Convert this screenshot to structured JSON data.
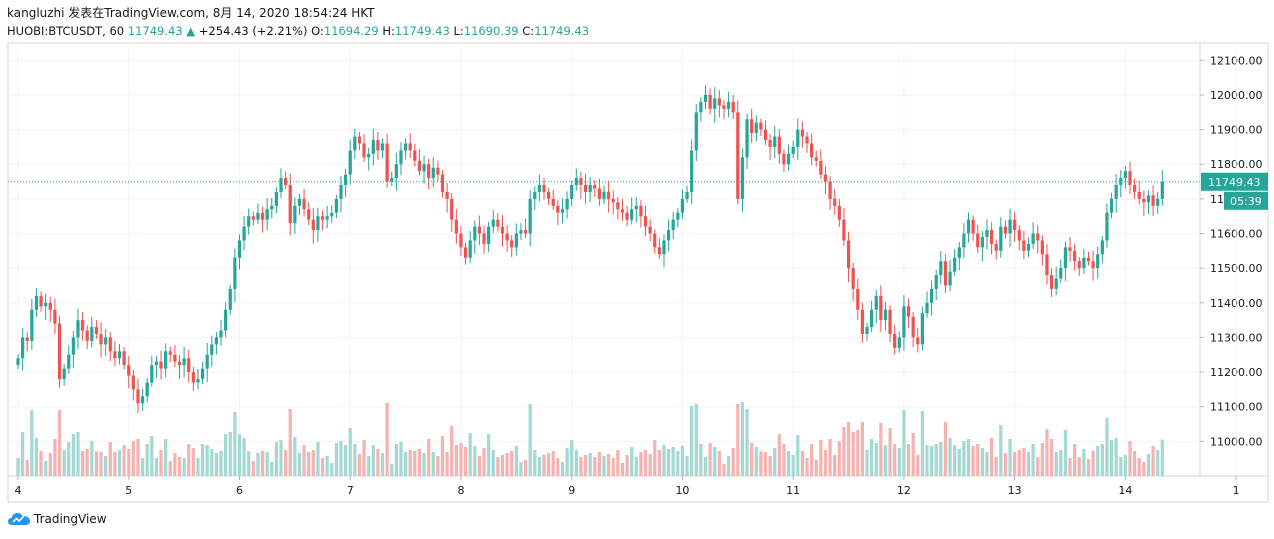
{
  "header": {
    "line1": "kangluzhi 发表在TradingView.com, 8月 14, 2020 18:54:24 HKT",
    "symbol": "HUOBI:BTCUSDT, 60",
    "last": "11749.43",
    "change": "+254.43 (+2.21%)",
    "o_label": "O:",
    "o": "11694.29",
    "h_label": "H:",
    "h": "11749.43",
    "l_label": "L:",
    "l": "11690.39",
    "c_label": "C:",
    "c": "11749.43"
  },
  "colors": {
    "up": "#26a69a",
    "down": "#ef5350",
    "up_vol": "#a4d8d3",
    "down_vol": "#f4b3b1",
    "grid": "#f0f3fa",
    "text": "#131722"
  },
  "chart_data": {
    "type": "candlestick",
    "ylim": [
      10900,
      12150
    ],
    "yticks": [
      "12100.00",
      "12000.00",
      "11900.00",
      "11800.00",
      "11700.00",
      "11600.00",
      "11500.00",
      "11400.00",
      "11300.00",
      "11200.00",
      "11100.00",
      "11000.00"
    ],
    "xticks": [
      "4",
      "5",
      "6",
      "7",
      "8",
      "9",
      "10",
      "11",
      "12",
      "13",
      "14",
      "1"
    ],
    "last_price_label": "11749.43",
    "countdown_label": "05:39",
    "x_unit": "hours since Aug 4 00:00",
    "xlim": [
      0,
      254
    ],
    "closes": [
      11240,
      11300,
      11290,
      11380,
      11420,
      11390,
      11400,
      11380,
      11340,
      11180,
      11210,
      11250,
      11300,
      11350,
      11320,
      11290,
      11330,
      11310,
      11280,
      11300,
      11260,
      11240,
      11260,
      11220,
      11190,
      11150,
      11110,
      11130,
      11170,
      11220,
      11230,
      11210,
      11260,
      11250,
      11230,
      11220,
      11240,
      11200,
      11170,
      11180,
      11210,
      11250,
      11280,
      11300,
      11320,
      11380,
      11440,
      11530,
      11580,
      11620,
      11650,
      11640,
      11660,
      11640,
      11670,
      11680,
      11720,
      11760,
      11740,
      11630,
      11680,
      11700,
      11670,
      11640,
      11610,
      11650,
      11640,
      11650,
      11660,
      11700,
      11740,
      11770,
      11840,
      11880,
      11860,
      11820,
      11830,
      11870,
      11840,
      11860,
      11750,
      11760,
      11800,
      11840,
      11860,
      11840,
      11810,
      11780,
      11800,
      11760,
      11790,
      11770,
      11720,
      11700,
      11640,
      11600,
      11560,
      11530,
      11580,
      11620,
      11600,
      11570,
      11620,
      11640,
      11620,
      11600,
      11580,
      11560,
      11600,
      11610,
      11600,
      11700,
      11720,
      11740,
      11720,
      11700,
      11680,
      11660,
      11670,
      11700,
      11740,
      11760,
      11740,
      11720,
      11740,
      11730,
      11700,
      11720,
      11700,
      11690,
      11670,
      11660,
      11640,
      11670,
      11680,
      11650,
      11620,
      11600,
      11560,
      11540,
      11580,
      11610,
      11640,
      11660,
      11700,
      11720,
      11840,
      11950,
      11980,
      12000,
      11960,
      11990,
      11970,
      11960,
      11980,
      11950,
      11700,
      11820,
      11930,
      11890,
      11920,
      11900,
      11870,
      11850,
      11880,
      11830,
      11800,
      11830,
      11850,
      11900,
      11880,
      11860,
      11820,
      11810,
      11770,
      11750,
      11700,
      11680,
      11640,
      11580,
      11500,
      11440,
      11380,
      11310,
      11330,
      11380,
      11420,
      11350,
      11380,
      11310,
      11270,
      11300,
      11390,
      11360,
      11300,
      11280,
      11370,
      11400,
      11440,
      11480,
      11520,
      11450,
      11490,
      11530,
      11560,
      11600,
      11640,
      11600,
      11560,
      11590,
      11610,
      11570,
      11550,
      11620,
      11600,
      11640,
      11610,
      11580,
      11550,
      11570,
      11600,
      11580,
      11540,
      11480,
      11440,
      11470,
      11500,
      11560,
      11550,
      11520,
      11500,
      11530,
      11520,
      11500,
      11540,
      11580,
      11660,
      11700,
      11740,
      11760,
      11780,
      11740,
      11720,
      11700,
      11690,
      11710,
      11680,
      11700,
      11749
    ]
  }
}
